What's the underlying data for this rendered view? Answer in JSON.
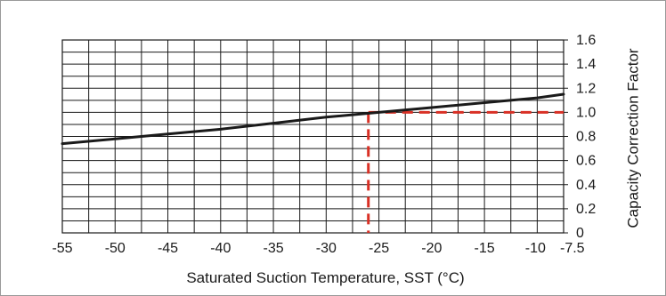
{
  "chart_data": {
    "type": "line",
    "xlabel": "Saturated Suction Temperature, SST (°C)",
    "ylabel": "Capacity Correction Factor",
    "xlim": [
      -55,
      -7.5
    ],
    "ylim": [
      0,
      1.6
    ],
    "x_ticks": [
      -55,
      -50,
      -45,
      -40,
      -35,
      -30,
      -25,
      -20,
      -15,
      -10,
      -7.5
    ],
    "x_tick_labels": [
      "-55",
      "-50",
      "-45",
      "-40",
      "-35",
      "-30",
      "-25",
      "-20",
      "-15",
      "-10",
      "-7.5"
    ],
    "y_ticks": [
      0,
      0.2,
      0.4,
      0.6,
      0.8,
      1.0,
      1.2,
      1.4,
      1.6
    ],
    "y_tick_labels": [
      "0",
      "0.2",
      "0.4",
      "0.6",
      "0.8",
      "1.0",
      "1.2",
      "1.4",
      "1.6"
    ],
    "grid": true,
    "y_axis_side": "right",
    "series": [
      {
        "x": [
          -55,
          -50,
          -45,
          -40,
          -35,
          -30,
          -25,
          -20,
          -15,
          -10,
          -7.5
        ],
        "y": [
          0.74,
          0.78,
          0.82,
          0.86,
          0.91,
          0.96,
          1.0,
          1.04,
          1.08,
          1.12,
          1.15
        ],
        "color": "#1a1a1a"
      }
    ],
    "reference_lines": {
      "x": -26,
      "y": 1.0,
      "color": "#d93025",
      "style": "dashed"
    }
  }
}
